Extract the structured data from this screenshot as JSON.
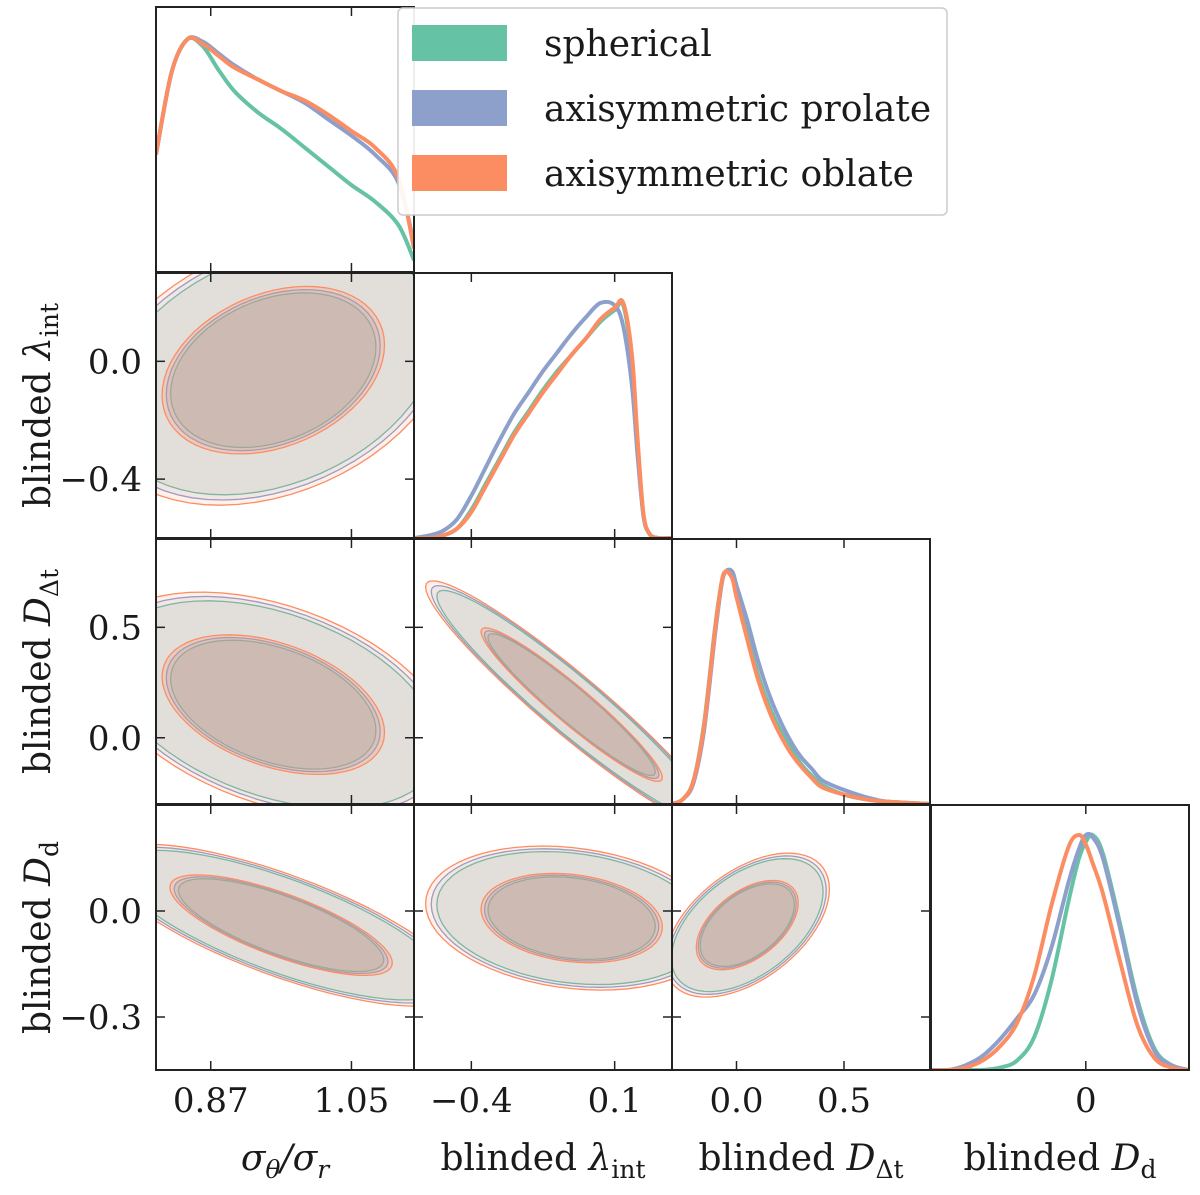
{
  "chart_data": {
    "type": "corner",
    "series": [
      {
        "name": "spherical",
        "color": "#66c2a5"
      },
      {
        "name": "axisymmetric prolate",
        "color": "#8da0cb"
      },
      {
        "name": "axisymmetric oblate",
        "color": "#fc8d62"
      }
    ],
    "legend_position": "top-right",
    "parameters": [
      {
        "symbol": "σθ/σr",
        "label_main": "σ",
        "label_sub1": "θ",
        "label_mid": "/σ",
        "label_sub2": "r",
        "range": [
          0.8,
          1.13
        ],
        "ticks": [
          0.87,
          1.05
        ],
        "tick_labels": [
          "0.87",
          "1.05"
        ]
      },
      {
        "label_main": "blinded λ",
        "label_sub": "int",
        "range": [
          -0.6,
          0.3
        ],
        "ticks": [
          -0.4,
          0.1
        ],
        "tick_labels": [
          "−0.4",
          "0.1"
        ],
        "y_ticks": [
          0.0,
          -0.4
        ],
        "y_tick_labels": [
          "0.0",
          "−0.4"
        ]
      },
      {
        "label_main": "blinded D",
        "label_sub": "Δt",
        "range": [
          -0.3,
          0.9
        ],
        "ticks": [
          0.0,
          0.5
        ],
        "tick_labels": [
          "0.0",
          "0.5"
        ],
        "y_ticks": [
          0.5,
          0.0
        ],
        "y_tick_labels": [
          "0.5",
          "0.0"
        ]
      },
      {
        "label_main": "blinded D",
        "label_sub": "d",
        "range": [
          -0.45,
          0.3
        ],
        "ticks": [
          0
        ],
        "tick_labels": [
          "0"
        ],
        "y_ticks": [
          0.0,
          -0.3
        ],
        "y_tick_labels": [
          "0.0",
          "−0.3"
        ]
      }
    ],
    "marginals": [
      {
        "param": 0,
        "x": [
          0.8,
          0.82,
          0.84,
          0.86,
          0.88,
          0.9,
          0.93,
          0.96,
          0.99,
          1.02,
          1.05,
          1.08,
          1.11,
          1.13
        ],
        "series": [
          {
            "name": "spherical",
            "density": [
              0.5,
              0.85,
              0.99,
              0.96,
              0.86,
              0.77,
              0.68,
              0.61,
              0.53,
              0.45,
              0.37,
              0.3,
              0.2,
              0.05
            ]
          },
          {
            "name": "axisymmetric prolate",
            "density": [
              0.5,
              0.85,
              0.99,
              0.98,
              0.93,
              0.88,
              0.82,
              0.77,
              0.72,
              0.65,
              0.58,
              0.5,
              0.38,
              0.12
            ]
          },
          {
            "name": "axisymmetric oblate",
            "density": [
              0.5,
              0.85,
              0.99,
              0.97,
              0.92,
              0.87,
              0.82,
              0.77,
              0.73,
              0.67,
              0.6,
              0.53,
              0.4,
              0.1
            ]
          }
        ]
      },
      {
        "param": 1,
        "x": [
          -0.6,
          -0.55,
          -0.5,
          -0.45,
          -0.4,
          -0.35,
          -0.3,
          -0.25,
          -0.2,
          -0.15,
          -0.1,
          -0.05,
          0.0,
          0.05,
          0.1,
          0.13,
          0.16,
          0.18,
          0.2,
          0.22,
          0.25,
          0.3
        ],
        "series": [
          {
            "name": "spherical",
            "density": [
              0.0,
              0.0,
              0.01,
              0.04,
              0.12,
              0.23,
              0.34,
              0.45,
              0.54,
              0.63,
              0.71,
              0.78,
              0.85,
              0.92,
              0.97,
              0.99,
              0.75,
              0.4,
              0.1,
              0.02,
              0.0,
              0.0
            ]
          },
          {
            "name": "axisymmetric prolate",
            "density": [
              0.0,
              0.01,
              0.03,
              0.08,
              0.18,
              0.3,
              0.42,
              0.53,
              0.62,
              0.71,
              0.79,
              0.87,
              0.94,
              1.0,
              0.99,
              0.9,
              0.65,
              0.35,
              0.1,
              0.02,
              0.0,
              0.0
            ]
          },
          {
            "name": "axisymmetric oblate",
            "density": [
              0.0,
              0.0,
              0.01,
              0.04,
              0.11,
              0.22,
              0.33,
              0.44,
              0.53,
              0.62,
              0.7,
              0.78,
              0.85,
              0.93,
              0.98,
              1.0,
              0.78,
              0.42,
              0.11,
              0.02,
              0.0,
              0.0
            ]
          }
        ]
      },
      {
        "param": 2,
        "x": [
          -0.3,
          -0.25,
          -0.2,
          -0.15,
          -0.1,
          -0.07,
          -0.05,
          -0.02,
          0.0,
          0.05,
          0.1,
          0.15,
          0.2,
          0.25,
          0.3,
          0.35,
          0.4,
          0.5,
          0.6,
          0.7,
          0.9
        ],
        "series": [
          {
            "name": "spherical",
            "density": [
              0.0,
              0.02,
              0.1,
              0.35,
              0.75,
              0.94,
              0.99,
              0.97,
              0.9,
              0.72,
              0.55,
              0.42,
              0.32,
              0.24,
              0.17,
              0.12,
              0.08,
              0.04,
              0.02,
              0.01,
              0.0
            ]
          },
          {
            "name": "axisymmetric prolate",
            "density": [
              0.0,
              0.02,
              0.09,
              0.32,
              0.72,
              0.93,
              0.99,
              0.99,
              0.93,
              0.78,
              0.61,
              0.47,
              0.36,
              0.27,
              0.2,
              0.15,
              0.1,
              0.06,
              0.03,
              0.01,
              0.0
            ]
          },
          {
            "name": "axisymmetric oblate",
            "density": [
              0.0,
              0.02,
              0.1,
              0.34,
              0.74,
              0.94,
              0.99,
              0.96,
              0.88,
              0.7,
              0.53,
              0.4,
              0.3,
              0.22,
              0.16,
              0.11,
              0.07,
              0.04,
              0.02,
              0.01,
              0.0
            ]
          }
        ]
      },
      {
        "param": 3,
        "x": [
          -0.45,
          -0.4,
          -0.35,
          -0.3,
          -0.25,
          -0.2,
          -0.15,
          -0.1,
          -0.05,
          -0.02,
          0.0,
          0.02,
          0.05,
          0.1,
          0.15,
          0.2,
          0.25,
          0.3
        ],
        "series": [
          {
            "name": "spherical",
            "density": [
              0.0,
              0.0,
              0.0,
              0.0,
              0.01,
              0.04,
              0.14,
              0.38,
              0.72,
              0.9,
              0.97,
              1.0,
              0.92,
              0.62,
              0.3,
              0.09,
              0.02,
              0.0
            ]
          },
          {
            "name": "axisymmetric prolate",
            "density": [
              0.0,
              0.0,
              0.02,
              0.06,
              0.13,
              0.22,
              0.32,
              0.52,
              0.8,
              0.94,
              1.0,
              0.99,
              0.9,
              0.6,
              0.28,
              0.08,
              0.02,
              0.0
            ]
          },
          {
            "name": "axisymmetric oblate",
            "density": [
              0.0,
              0.0,
              0.01,
              0.04,
              0.1,
              0.2,
              0.4,
              0.7,
              0.95,
              1.0,
              0.96,
              0.88,
              0.75,
              0.46,
              0.19,
              0.05,
              0.01,
              0.0
            ]
          }
        ]
      }
    ],
    "contour_levels": [
      "68%",
      "95%"
    ],
    "joint": [
      {
        "x_param": 0,
        "y_param": 1,
        "center": [
          0.95,
          -0.03
        ],
        "sigma": [
          0.09,
          0.18
        ],
        "corr": 0.3
      },
      {
        "x_param": 0,
        "y_param": 2,
        "center": [
          0.95,
          0.15
        ],
        "sigma": [
          0.09,
          0.2
        ],
        "corr": -0.4
      },
      {
        "x_param": 1,
        "y_param": 2,
        "center": [
          -0.05,
          0.15
        ],
        "sigma": [
          0.2,
          0.22
        ],
        "corr": -0.95
      },
      {
        "x_param": 0,
        "y_param": 3,
        "center": [
          0.96,
          -0.04
        ],
        "sigma": [
          0.09,
          0.09
        ],
        "corr": -0.75
      },
      {
        "x_param": 1,
        "y_param": 3,
        "center": [
          -0.05,
          -0.02
        ],
        "sigma": [
          0.2,
          0.08
        ],
        "corr": -0.2
      },
      {
        "x_param": 2,
        "y_param": 3,
        "center": [
          0.05,
          -0.04
        ],
        "sigma": [
          0.15,
          0.08
        ],
        "corr": 0.5
      }
    ]
  }
}
